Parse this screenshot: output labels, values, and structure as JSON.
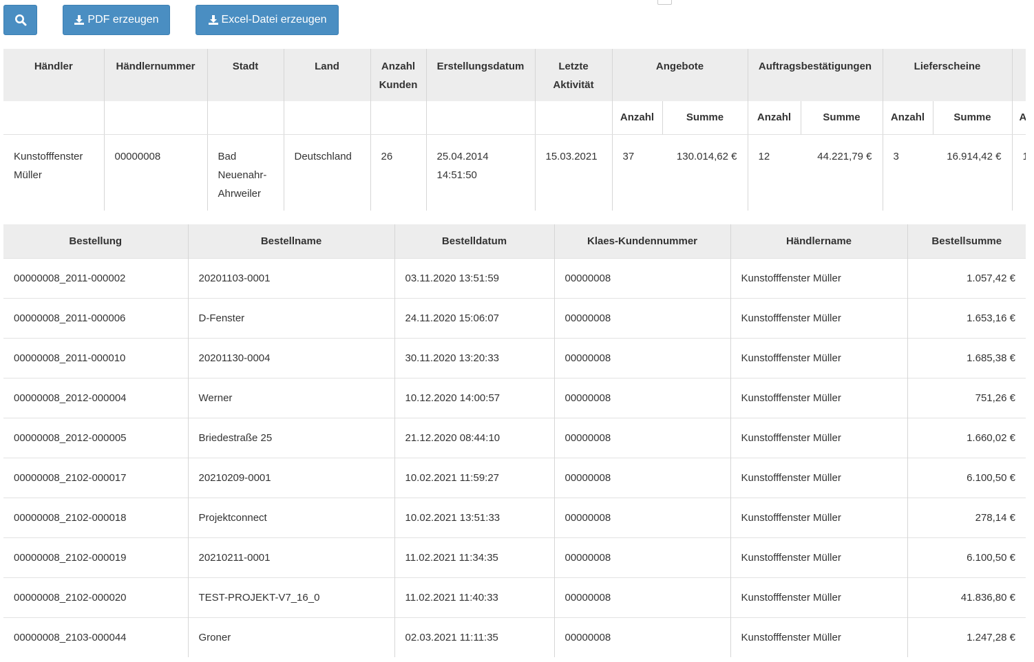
{
  "toolbar": {
    "search_icon": "search-icon",
    "pdf_label": "PDF erzeugen",
    "excel_label": "Excel-Datei erzeugen",
    "download_icon": "download-icon"
  },
  "summary": {
    "headers": {
      "dealer": "Händler",
      "dealer_no": "Händlernummer",
      "city": "Stadt",
      "country": "Land",
      "customer_count": "Anzahl Kunden",
      "created": "Erstellungsdatum",
      "last_activity": "Letzte Aktivität",
      "offers": "Angebote",
      "confirmations": "Auftragsbestätigungen",
      "delivery_notes": "Lieferscheine"
    },
    "subheaders": {
      "count": "Anzahl",
      "sum": "Summe",
      "cut": "A"
    },
    "row": {
      "dealer": "Kunstofffenster Müller",
      "dealer_no": "00000008",
      "city": "Bad Neuenahr-Ahrweiler",
      "country": "Deutschland",
      "customer_count": "26",
      "created": "25.04.2014 14:51:50",
      "last_activity": "15.03.2021",
      "offers_count": "37",
      "offers_sum": "130.014,62 €",
      "confirm_count": "12",
      "confirm_sum": "44.221,79 €",
      "delivery_count": "3",
      "delivery_sum": "16.914,42 €",
      "cut": "1"
    }
  },
  "orders": {
    "headers": [
      "Bestellung",
      "Bestellname",
      "Bestelldatum",
      "Klaes-Kundennummer",
      "Händlername",
      "Bestellsumme"
    ],
    "rows": [
      [
        "00000008_2011-000002",
        "20201103-0001",
        "03.11.2020 13:51:59",
        "00000008",
        "Kunstofffenster Müller",
        "1.057,42 €"
      ],
      [
        "00000008_2011-000006",
        "D-Fenster",
        "24.11.2020 15:06:07",
        "00000008",
        "Kunstofffenster Müller",
        "1.653,16 €"
      ],
      [
        "00000008_2011-000010",
        "20201130-0004",
        "30.11.2020 13:20:33",
        "00000008",
        "Kunstofffenster Müller",
        "1.685,38 €"
      ],
      [
        "00000008_2012-000004",
        "Werner",
        "10.12.2020 14:00:57",
        "00000008",
        "Kunstofffenster Müller",
        "751,26 €"
      ],
      [
        "00000008_2012-000005",
        "Briedestraße 25",
        "21.12.2020 08:44:10",
        "00000008",
        "Kunstofffenster Müller",
        "1.660,02 €"
      ],
      [
        "00000008_2102-000017",
        "20210209-0001",
        "10.02.2021 11:59:27",
        "00000008",
        "Kunstofffenster Müller",
        "6.100,50 €"
      ],
      [
        "00000008_2102-000018",
        "Projektconnect",
        "10.02.2021 13:51:33",
        "00000008",
        "Kunstofffenster Müller",
        "278,14 €"
      ],
      [
        "00000008_2102-000019",
        "20210211-0001",
        "11.02.2021 11:34:35",
        "00000008",
        "Kunstofffenster Müller",
        "6.100,50 €"
      ],
      [
        "00000008_2102-000020",
        "TEST-PROJEKT-V7_16_0",
        "11.02.2021 11:40:33",
        "00000008",
        "Kunstofffenster Müller",
        "41.836,80 €"
      ],
      [
        "00000008_2103-000044",
        "Groner",
        "02.03.2021 11:11:35",
        "00000008",
        "Kunstofffenster Müller",
        "1.247,28 €"
      ]
    ]
  },
  "colors": {
    "button": "#4a8ec2",
    "header_bg": "#ededed"
  }
}
